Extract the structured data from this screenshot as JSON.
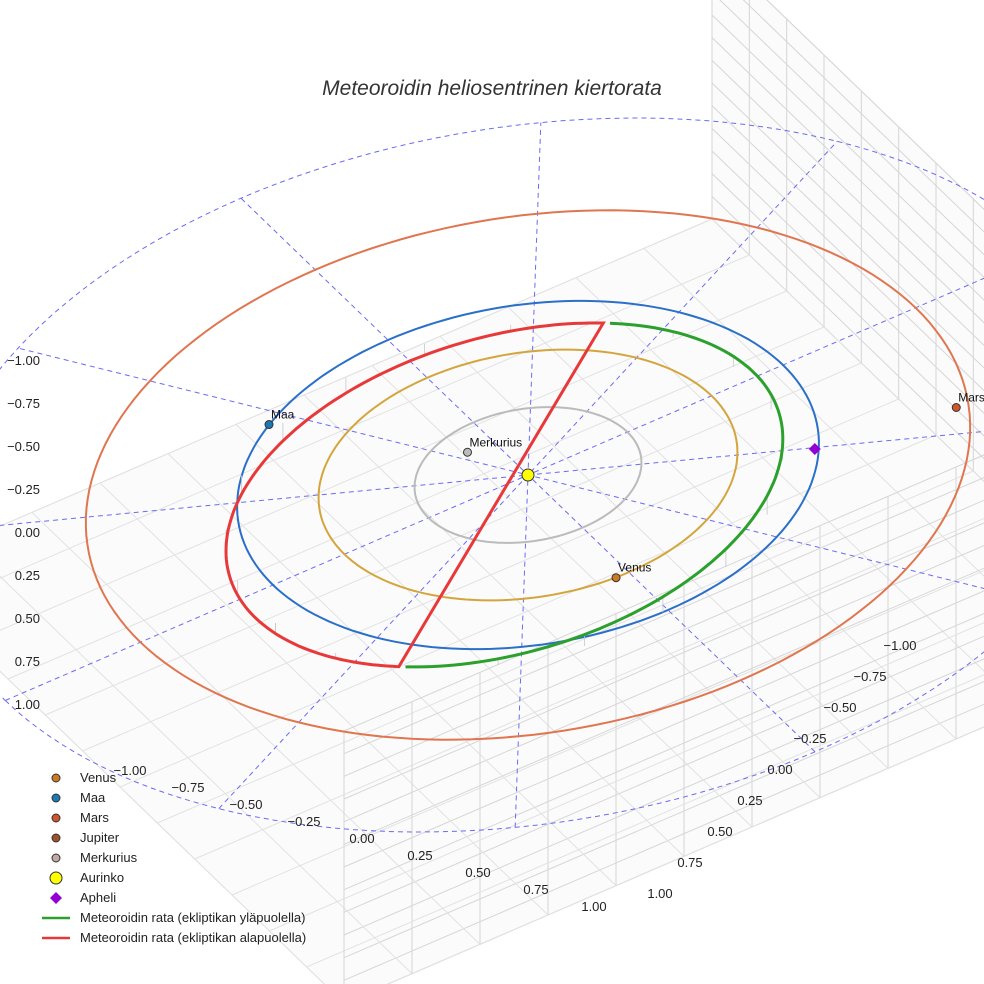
{
  "chart_data": {
    "type": "scatter3d",
    "title": "Meteoroidin heliosentrinen kiertorata",
    "axes": {
      "x": {
        "range": [
          -1.0,
          1.0
        ],
        "ticks": [
          "−1.00",
          "−0.75",
          "−0.50",
          "−0.25",
          "0.00",
          "0.25",
          "0.50",
          "0.75",
          "1.00"
        ]
      },
      "y": {
        "range": [
          -1.0,
          1.0
        ],
        "ticks": [
          "−1.00",
          "−0.75",
          "−0.50",
          "−0.25",
          "0.00",
          "0.25",
          "0.50",
          "0.75",
          "1.00"
        ]
      },
      "z": {
        "range": [
          -1.0,
          1.0
        ],
        "ticks": [
          "−1.00",
          "−0.75",
          "−0.50",
          "−0.25",
          "0.00",
          "0.25",
          "0.50",
          "0.75",
          "1.00"
        ]
      }
    },
    "orbits": [
      {
        "name": "Merkurius",
        "radius_au": 0.39,
        "color": "#bbbbbb"
      },
      {
        "name": "Venus",
        "radius_au": 0.72,
        "color": "#d4a53c"
      },
      {
        "name": "Maa",
        "radius_au": 1.0,
        "color": "#2a6fc9"
      },
      {
        "name": "Mars",
        "radius_au": 1.52,
        "color": "#e07650"
      }
    ],
    "bodies": [
      {
        "name": "Venus",
        "x": 0.05,
        "y": 0.72,
        "z": 0.0,
        "color": "#cc7a22",
        "marker": "circle"
      },
      {
        "name": "Maa",
        "x": 0.56,
        "y": -0.83,
        "z": 0.0,
        "color": "#1f77b4",
        "marker": "circle"
      },
      {
        "name": "Mars",
        "x": -1.35,
        "y": 0.6,
        "z": 0.0,
        "color": "#d0542c",
        "marker": "circle"
      },
      {
        "name": "Merkurius",
        "x": 0.1,
        "y": -0.25,
        "z": 0.0,
        "color": "#bbbbbb",
        "marker": "circle"
      },
      {
        "name": "Aurinko",
        "x": 0.0,
        "y": 0.0,
        "z": 0.0,
        "color": "#ffff00",
        "marker": "circle"
      },
      {
        "name": "Apheli",
        "x": -0.85,
        "y": 0.5,
        "z": 0.0,
        "color": "#9400d3",
        "marker": "diamond"
      }
    ],
    "legend": {
      "position": "bottom-left",
      "entries": [
        {
          "label": "Venus",
          "color": "#cc7a22",
          "marker": "circle"
        },
        {
          "label": "Maa",
          "color": "#1f77b4",
          "marker": "circle"
        },
        {
          "label": "Mars",
          "color": "#d0542c",
          "marker": "circle"
        },
        {
          "label": "Jupiter",
          "color": "#a0522d",
          "marker": "circle"
        },
        {
          "label": "Merkurius",
          "color": "#c0a9a0",
          "marker": "circle"
        },
        {
          "label": "Aurinko",
          "color": "#ffff00",
          "marker": "big-circle"
        },
        {
          "label": "Apheli",
          "color": "#9400d3",
          "marker": "diamond"
        },
        {
          "label": "Meteoroidin rata (ekliptikan yläpuolella)",
          "color": "#2ca02c",
          "marker": "line"
        },
        {
          "label": "Meteoroidin rata (ekliptikan alapuolella)",
          "color": "#e8393a",
          "marker": "line"
        }
      ]
    },
    "meteoroid_orbit": {
      "above_color": "#2ca02c",
      "below_color": "#e8393a"
    }
  }
}
